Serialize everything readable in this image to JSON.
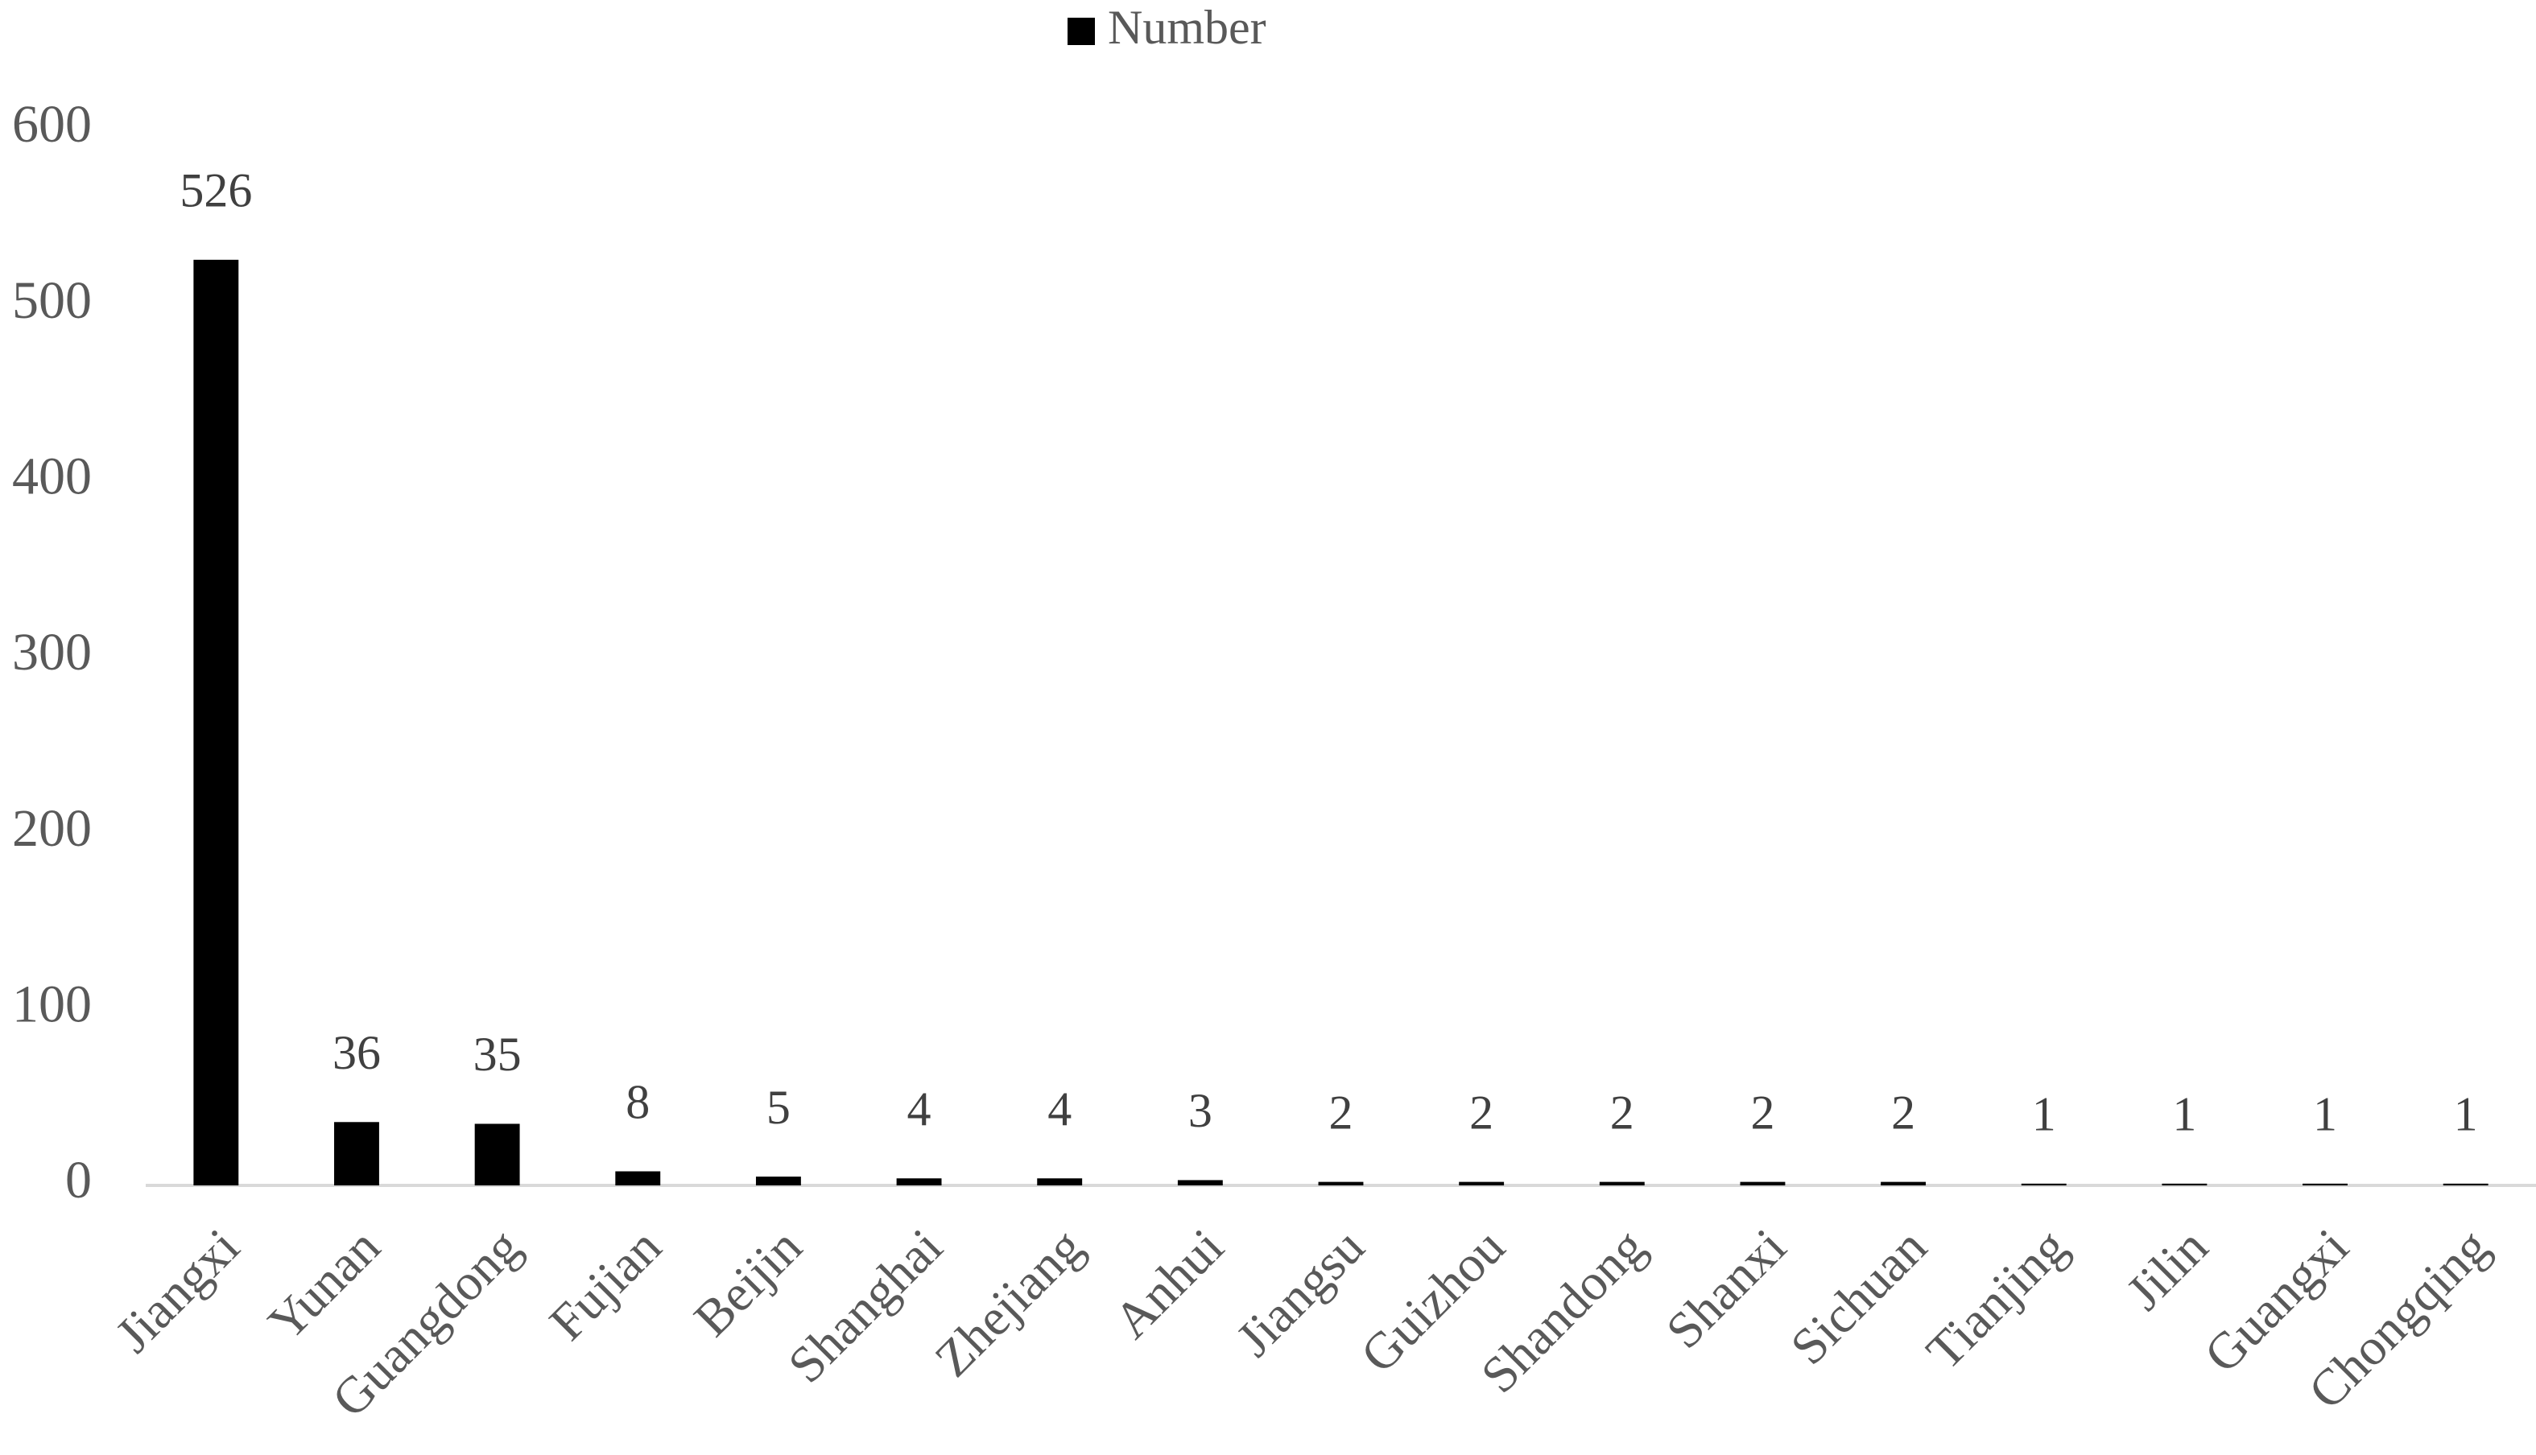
{
  "chart_data": {
    "type": "bar",
    "categories": [
      "Jiangxi",
      "Yunan",
      "Guangdong",
      "Fujian",
      "Beijin",
      "Shanghai",
      "Zhejiang",
      "Anhui",
      "Jiangsu",
      "Guizhou",
      "Shandong",
      "Shanxi",
      "Sichuan",
      "Tianjing",
      "Jilin",
      "Guangxi",
      "Chongqing"
    ],
    "series": [
      {
        "name": "Number",
        "color": "#000000",
        "values": [
          526,
          36,
          35,
          8,
          5,
          4,
          4,
          3,
          2,
          2,
          2,
          2,
          2,
          1,
          1,
          1,
          1
        ]
      }
    ],
    "ylim": [
      0,
      600
    ],
    "yticks": [
      0,
      100,
      200,
      300,
      400,
      500,
      600
    ],
    "grid": false,
    "legend": "top"
  }
}
